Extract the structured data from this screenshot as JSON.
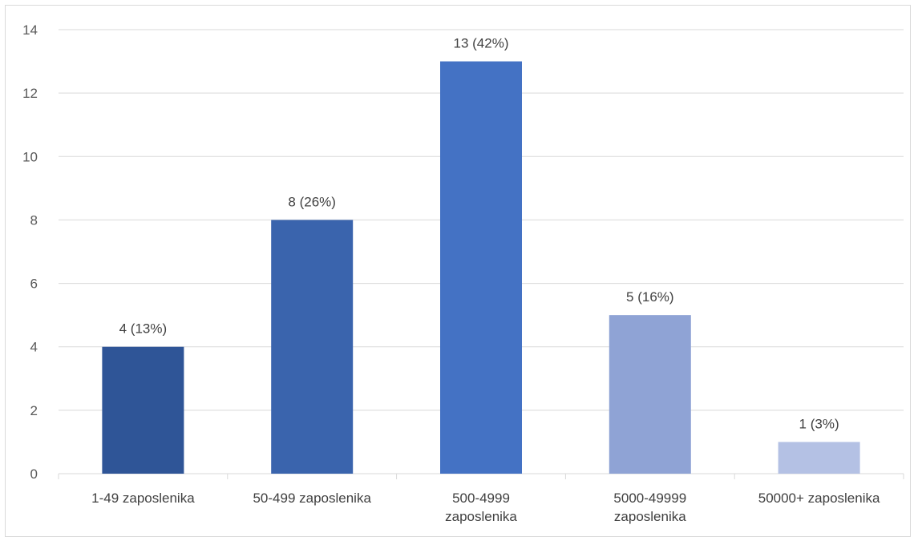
{
  "chart_data": {
    "type": "bar",
    "categories": [
      [
        "1-49 zaposlenika"
      ],
      [
        "50-499 zaposlenika"
      ],
      [
        "500-4999",
        "zaposlenika"
      ],
      [
        "5000-49999",
        "zaposlenika"
      ],
      [
        "50000+ zaposlenika"
      ]
    ],
    "values": [
      4,
      8,
      13,
      5,
      1
    ],
    "data_labels": [
      "4 (13%)",
      "8 (26%)",
      "13 (42%)",
      "5 (16%)",
      "1 (3%)"
    ],
    "bar_colors": [
      "#2f5597",
      "#3a64ad",
      "#4472c4",
      "#8fa3d5",
      "#b4c1e4"
    ],
    "gridline_color": "#d9d9d9",
    "ylim": [
      0,
      14
    ],
    "yticks": [
      0,
      2,
      4,
      6,
      8,
      10,
      12,
      14
    ],
    "grid": true,
    "title": "",
    "xlabel": "",
    "ylabel": ""
  }
}
